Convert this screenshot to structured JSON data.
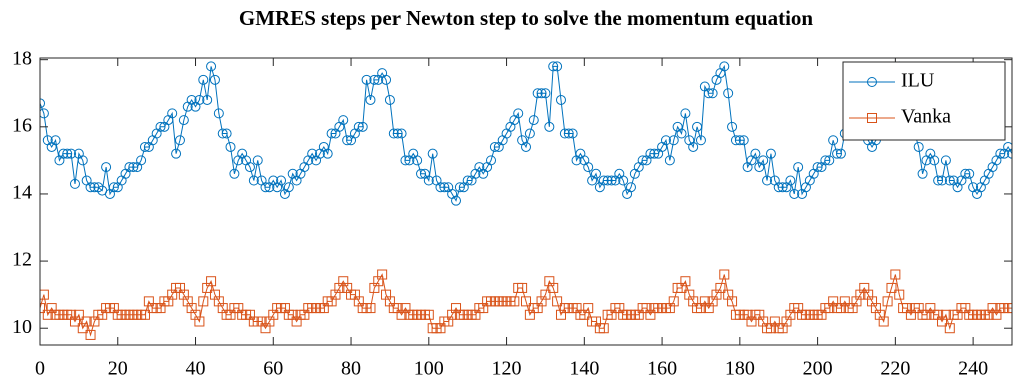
{
  "chart_data": {
    "type": "line",
    "title": "GMRES steps per Newton step to solve the momentum equation",
    "x": [
      0,
      1,
      2,
      3,
      4,
      5,
      6,
      7,
      8,
      9,
      10,
      11,
      12,
      13,
      14,
      15,
      16,
      17,
      18,
      19,
      20,
      21,
      22,
      23,
      24,
      25,
      26,
      27,
      28,
      29,
      30,
      31,
      32,
      33,
      34,
      35,
      36,
      37,
      38,
      39,
      40,
      41,
      42,
      43,
      44,
      45,
      46,
      47,
      48,
      49,
      50,
      51,
      52,
      53,
      54,
      55,
      56,
      57,
      58,
      59,
      60,
      61,
      62,
      63,
      64,
      65,
      66,
      67,
      68,
      69,
      70,
      71,
      72,
      73,
      74,
      75,
      76,
      77,
      78,
      79,
      80,
      81,
      82,
      83,
      84,
      85,
      86,
      87,
      88,
      89,
      90,
      91,
      92,
      93,
      94,
      95,
      96,
      97,
      98,
      99,
      100,
      101,
      102,
      103,
      104,
      105,
      106,
      107,
      108,
      109,
      110,
      111,
      112,
      113,
      114,
      115,
      116,
      117,
      118,
      119,
      120,
      121,
      122,
      123,
      124,
      125,
      126,
      127,
      128,
      129,
      130,
      131,
      132,
      133,
      134,
      135,
      136,
      137,
      138,
      139,
      140,
      141,
      142,
      143,
      144,
      145,
      146,
      147,
      148,
      149,
      150,
      151,
      152,
      153,
      154,
      155,
      156,
      157,
      158,
      159,
      160,
      161,
      162,
      163,
      164,
      165,
      166,
      167,
      168,
      169,
      170,
      171,
      172,
      173,
      174,
      175,
      176,
      177,
      178,
      179,
      180,
      181,
      182,
      183,
      184,
      185,
      186,
      187,
      188,
      189,
      190,
      191,
      192,
      193,
      194,
      195,
      196,
      197,
      198,
      199,
      200,
      201,
      202,
      203,
      204,
      205,
      206,
      207,
      208,
      209,
      210,
      211,
      212,
      213,
      214,
      215,
      216,
      217,
      218,
      219,
      220,
      221,
      222,
      223,
      224,
      225,
      226,
      227,
      228,
      229,
      230,
      231,
      232,
      233,
      234,
      235,
      236,
      237,
      238,
      239,
      240,
      241,
      242,
      243,
      244,
      245,
      246,
      247,
      248,
      249,
      250
    ],
    "series": [
      {
        "name": "ILU",
        "color": "#0072bd",
        "marker": "circle",
        "values": [
          16.7,
          16.4,
          15.6,
          15.4,
          15.6,
          15.0,
          15.2,
          15.2,
          15.2,
          14.3,
          15.2,
          15.0,
          14.4,
          14.2,
          14.2,
          14.2,
          14.1,
          14.8,
          14.0,
          14.2,
          14.2,
          14.4,
          14.6,
          14.8,
          14.8,
          14.8,
          15.0,
          15.4,
          15.4,
          15.6,
          15.8,
          16.0,
          16.0,
          16.2,
          16.4,
          15.2,
          15.6,
          16.2,
          16.6,
          16.8,
          16.6,
          16.8,
          17.4,
          16.8,
          17.8,
          17.4,
          16.4,
          15.8,
          15.8,
          15.4,
          14.6,
          15.0,
          15.2,
          15.0,
          14.8,
          14.4,
          15.0,
          14.4,
          14.2,
          14.2,
          14.4,
          14.2,
          14.4,
          14.0,
          14.2,
          14.6,
          14.4,
          14.6,
          14.8,
          15.0,
          15.2,
          15.0,
          15.2,
          15.4,
          15.2,
          15.8,
          15.8,
          16.0,
          16.2,
          15.6,
          15.6,
          15.8,
          16.0,
          16.0,
          17.4,
          16.8,
          17.4,
          17.4,
          17.6,
          17.4,
          16.8,
          15.8,
          15.8,
          15.8,
          15.0,
          15.0,
          15.2,
          15.0,
          14.6,
          14.6,
          14.4,
          15.2,
          14.4,
          14.2,
          14.2,
          14.2,
          14.0,
          13.8,
          14.2,
          14.2,
          14.4,
          14.4,
          14.6,
          14.8,
          14.6,
          14.8,
          15.0,
          15.4,
          15.4,
          15.6,
          15.8,
          16.0,
          16.2,
          16.4,
          15.6,
          15.4,
          15.8,
          16.2,
          17.0,
          17.0,
          17.0,
          16.0,
          17.8,
          17.8,
          16.8,
          15.8,
          15.8,
          15.8,
          15.0,
          15.2,
          15.0,
          14.8,
          14.4,
          14.6,
          14.2,
          14.4,
          14.4,
          14.4,
          14.4,
          14.6,
          14.4,
          14.0,
          14.2,
          14.6,
          14.8,
          15.0,
          15.0,
          15.2,
          15.2,
          15.2,
          15.4,
          15.6,
          15.0,
          15.6,
          16.0,
          15.8,
          16.4,
          15.6,
          15.4,
          16.0,
          15.6,
          17.2,
          17.0,
          17.0,
          17.4,
          17.6,
          17.8,
          17.0,
          16.0,
          15.6,
          15.6,
          15.6,
          14.8,
          15.0,
          15.2,
          14.8,
          15.0,
          14.4,
          15.2,
          14.4,
          14.2,
          14.2,
          14.2,
          14.4,
          14.0,
          14.8,
          14.0,
          14.2,
          14.4,
          14.6,
          14.8,
          14.8,
          15.0,
          15.0,
          15.6,
          15.2,
          15.2,
          15.8,
          15.8,
          16.0,
          16.2,
          16.4,
          16.6,
          15.6,
          15.4,
          15.6,
          16.0,
          16.4,
          16.8,
          17.0,
          17.4,
          17.8,
          17.4,
          17.0,
          16.4,
          15.8,
          15.4,
          14.6,
          15.0,
          15.2,
          15.0,
          14.4,
          14.4,
          15.0,
          14.4,
          14.4,
          14.2,
          14.4,
          14.6,
          14.6,
          14.2,
          14.0,
          14.2,
          14.4,
          14.6,
          14.8,
          15.0,
          15.2,
          15.2,
          15.4,
          15.2
        ]
      },
      {
        "name": "Vanka",
        "color": "#d95319",
        "marker": "square",
        "values": [
          10.6,
          11.0,
          10.4,
          10.6,
          10.4,
          10.4,
          10.4,
          10.4,
          10.4,
          10.2,
          10.4,
          10.0,
          10.2,
          9.8,
          10.2,
          10.4,
          10.4,
          10.6,
          10.6,
          10.6,
          10.4,
          10.4,
          10.4,
          10.4,
          10.4,
          10.4,
          10.4,
          10.4,
          10.8,
          10.6,
          10.6,
          10.6,
          10.8,
          10.8,
          11.0,
          11.2,
          11.2,
          11.0,
          10.8,
          10.6,
          10.4,
          10.2,
          10.8,
          11.2,
          11.4,
          11.0,
          10.8,
          10.6,
          10.4,
          10.4,
          10.6,
          10.6,
          10.4,
          10.4,
          10.4,
          10.2,
          10.2,
          10.2,
          10.0,
          10.2,
          10.4,
          10.6,
          10.6,
          10.6,
          10.4,
          10.4,
          10.2,
          10.4,
          10.4,
          10.6,
          10.6,
          10.6,
          10.6,
          10.6,
          10.8,
          10.8,
          11.0,
          11.2,
          11.4,
          11.2,
          11.0,
          11.0,
          10.8,
          10.6,
          10.6,
          10.6,
          11.2,
          11.4,
          11.6,
          11.0,
          10.8,
          10.6,
          10.6,
          10.4,
          10.6,
          10.4,
          10.4,
          10.4,
          10.4,
          10.4,
          10.4,
          10.0,
          10.0,
          10.0,
          10.2,
          10.2,
          10.4,
          10.6,
          10.4,
          10.4,
          10.4,
          10.4,
          10.4,
          10.6,
          10.6,
          10.8,
          10.8,
          10.8,
          10.8,
          10.8,
          10.8,
          10.8,
          10.8,
          11.2,
          11.2,
          10.8,
          10.4,
          10.6,
          10.6,
          10.8,
          11.0,
          11.4,
          11.2,
          10.8,
          10.4,
          10.6,
          10.6,
          10.6,
          10.6,
          10.4,
          10.4,
          10.6,
          10.2,
          10.2,
          10.0,
          10.0,
          10.4,
          10.4,
          10.6,
          10.6,
          10.4,
          10.4,
          10.4,
          10.4,
          10.4,
          10.6,
          10.6,
          10.4,
          10.6,
          10.6,
          10.6,
          10.6,
          10.6,
          10.8,
          11.2,
          11.2,
          11.4,
          11.0,
          10.8,
          10.6,
          10.6,
          10.8,
          10.6,
          10.8,
          11.0,
          11.2,
          11.6,
          11.0,
          10.8,
          10.4,
          10.4,
          10.4,
          10.4,
          10.2,
          10.4,
          10.4,
          10.2,
          10.0,
          10.0,
          10.2,
          10.0,
          10.0,
          10.2,
          10.4,
          10.6,
          10.6,
          10.4,
          10.4,
          10.4,
          10.4,
          10.4,
          10.4,
          10.6,
          10.6,
          10.8,
          10.6,
          10.6,
          10.8,
          10.6,
          10.6,
          10.8,
          11.0,
          11.2,
          11.0,
          10.8,
          10.6,
          10.4,
          10.2,
          10.8,
          11.2,
          11.6,
          11.0,
          10.6,
          10.6,
          10.4,
          10.6,
          10.6,
          10.4,
          10.4,
          10.6,
          10.4,
          10.4,
          10.2,
          10.4,
          10.0,
          10.4,
          10.4,
          10.6,
          10.6,
          10.4,
          10.4,
          10.4,
          10.4,
          10.4,
          10.4,
          10.6,
          10.4,
          10.6,
          10.6,
          10.6,
          10.6
        ]
      }
    ],
    "xlim": [
      0,
      250
    ],
    "xticks": [
      0,
      20,
      40,
      60,
      80,
      100,
      120,
      140,
      160,
      180,
      200,
      220,
      240
    ],
    "ylim": [
      9.5,
      18.05
    ],
    "yticks": [
      10,
      12,
      14,
      16,
      18
    ],
    "grid": false,
    "legend": "northeast"
  }
}
